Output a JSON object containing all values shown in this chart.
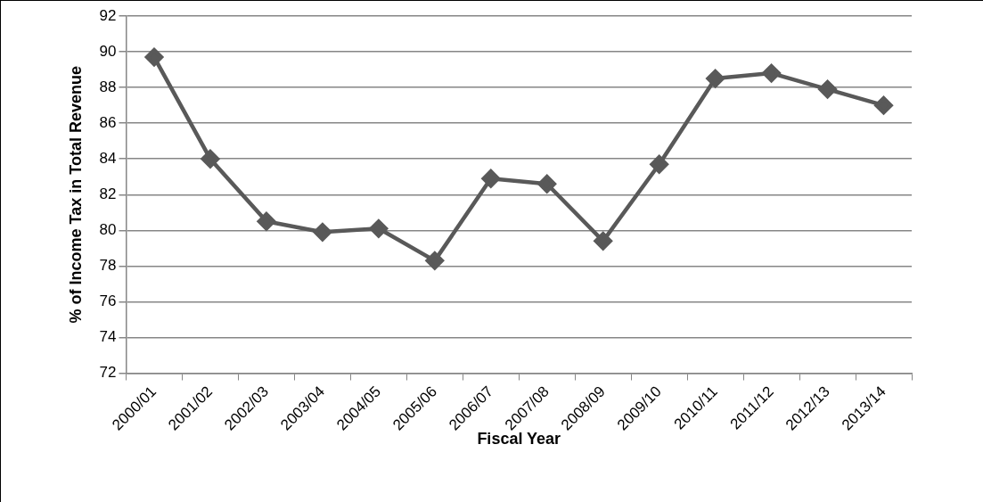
{
  "chart_data": {
    "type": "line",
    "xlabel": "Fiscal Year",
    "ylabel": "% of Income Tax in Total Revenue",
    "categories": [
      "2000/01",
      "2001/02",
      "2002/03",
      "2003/04",
      "2004/05",
      "2005/06",
      "2006/07",
      "2007/08",
      "2008/09",
      "2009/10",
      "2010/11",
      "2011/12",
      "2012/13",
      "2013/14"
    ],
    "series": [
      {
        "color": "#595959",
        "values": [
          89.7,
          84.0,
          80.5,
          79.9,
          80.1,
          78.3,
          82.9,
          82.6,
          79.4,
          83.7,
          88.5,
          88.8,
          87.9,
          87.0
        ]
      }
    ],
    "ylim": [
      72,
      92
    ],
    "yticks": [
      72,
      74,
      76,
      78,
      80,
      82,
      84,
      86,
      88,
      90,
      92
    ],
    "grid": "y",
    "legend": false,
    "marker": "diamond",
    "line_style": "solid"
  }
}
